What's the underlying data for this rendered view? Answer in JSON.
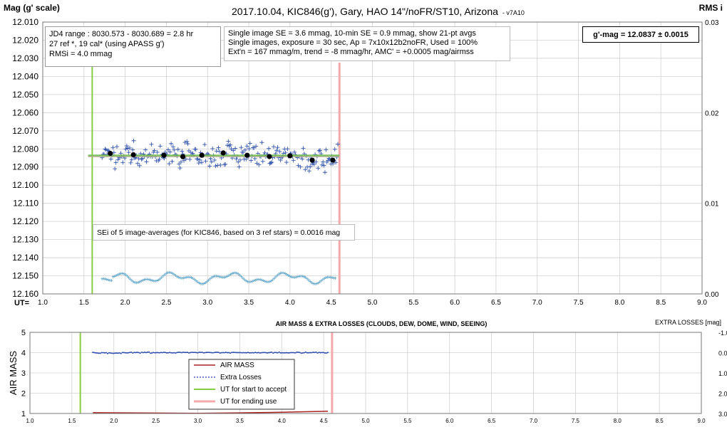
{
  "top_chart": {
    "title": "2017.10.04,  KIC846(g'),  Gary,  HAO  14\"/noFR/ST10,  Arizona",
    "version": "- v7A10",
    "ylabel_left": "Mag (g' scale)",
    "ylabel_right": "RMS i",
    "xlabel": "UT=",
    "y_ticks": [
      "12.010",
      "12.020",
      "12.030",
      "12.040",
      "12.050",
      "12.060",
      "12.070",
      "12.080",
      "12.090",
      "12.100",
      "12.110",
      "12.120",
      "12.130",
      "12.140",
      "12.150",
      "12.160"
    ],
    "x_ticks": [
      "1.0",
      "1.5",
      "2.0",
      "2.5",
      "3.0",
      "3.5",
      "4.0",
      "4.5",
      "5.0",
      "5.5",
      "6.0",
      "6.5",
      "7.0",
      "7.5",
      "8.0",
      "8.5",
      "9.0"
    ],
    "right_ticks": [
      "0.03",
      "0.02",
      "0.01",
      "0.00"
    ],
    "info_left": [
      "JD4 range : 8030.573 - 8030.689 =  2.8  hr",
      "27 ref *, 19 cal* (using APASS g')",
      "RMSi = 4.0 mmag"
    ],
    "info_center": [
      "Single image SE = 3.6 mmag, 10-min SE = 0.9 mmag, show 21-pt avgs",
      "Single images, exposure = 30 sec, Ap = 7x10x12b2noFR, Used = 100%",
      "Ext'n = 167 mmag/m, trend = -8 mmag/hr, AMC' = +0.0005 mag/airmss"
    ],
    "result_box": "g'-mag = 12.0837 ± 0.0015",
    "sei_note": "SEi of 5 image-averages (for KIC846, based on 3 ref stars) = 0.0016 mag"
  },
  "bottom_chart": {
    "title": "AIR MASS & EXTRA LOSSES (CLOUDS, DEW, DOME, WIND, SEEING)",
    "ylabel_left": "AIR MASS",
    "ylabel_right": "EXTRA LOSSES [mag]",
    "y_ticks": [
      "5",
      "4",
      "3",
      "2",
      "1"
    ],
    "right_ticks": [
      "-1.0",
      "0.0",
      "1.0",
      "2.0",
      "3.0"
    ],
    "x_ticks": [
      "1.0",
      "1.5",
      "2.0",
      "2.5",
      "3.0",
      "3.5",
      "4.0",
      "4.5",
      "5.0",
      "5.5",
      "6.0",
      "6.5",
      "7.0",
      "7.5",
      "8.0",
      "8.5",
      "9.0"
    ],
    "legend": [
      "AIR MASS",
      "Extra Losses",
      "UT for start to accept",
      "UT for ending use"
    ]
  },
  "colors": {
    "singles": "#3355aa",
    "avg": "#000000",
    "trend": "#77bb55",
    "start": "#88cc44",
    "end": "#f4aaaa",
    "rms": "#66aacc",
    "airmass": "#aa2222",
    "losses": "#2244aa"
  },
  "chart_data": [
    {
      "type": "scatter",
      "title": "2017.10.04,  KIC846(g'),  Gary,  HAO  14\"/noFR/ST10,  Arizona",
      "xlabel": "UT=",
      "ylabel": "Mag (g' scale)",
      "xlim": [
        1.0,
        9.0
      ],
      "ylim": [
        12.16,
        12.01
      ],
      "y2label": "RMS i",
      "y2lim": [
        0.0,
        0.03
      ],
      "grid": true,
      "ut_start": 1.6,
      "ut_end": 4.6,
      "trend_line": {
        "x": [
          1.55,
          4.6
        ],
        "y": [
          12.0837,
          12.0837
        ]
      },
      "averages": {
        "name": "21-pt avgs",
        "x": [
          1.82,
          2.1,
          2.47,
          2.7,
          2.93,
          3.19,
          3.48,
          3.75,
          4.0,
          4.27,
          4.52
        ],
        "y": [
          12.0825,
          12.0832,
          12.0835,
          12.0843,
          12.0835,
          12.0822,
          12.0835,
          12.0842,
          12.0838,
          12.0862,
          12.0862
        ]
      },
      "singles_ut_range": [
        1.72,
        4.58
      ],
      "rms_ut_range": [
        1.72,
        4.55
      ]
    },
    {
      "type": "line",
      "title": "AIR MASS & EXTRA LOSSES (CLOUDS, DEW, DOME, WIND, SEEING)",
      "xlim": [
        1.0,
        9.0
      ],
      "ylim": [
        1,
        5
      ],
      "ylabel": "AIR MASS",
      "y2label": "EXTRA LOSSES [mag]",
      "y2lim": [
        3.0,
        -1.0
      ],
      "series": [
        {
          "name": "AIR MASS",
          "x": [
            1.75,
            2.5,
            3.0,
            3.5,
            4.0,
            4.55
          ],
          "y": [
            1.04,
            1.02,
            1.01,
            1.03,
            1.06,
            1.11
          ]
        },
        {
          "name": "Extra Losses",
          "x": [
            1.75,
            2.5,
            3.0,
            3.5,
            4.0,
            4.55
          ],
          "y": [
            0.0,
            0.01,
            0.0,
            0.0,
            0.0,
            0.0
          ]
        }
      ],
      "ut_start": 1.6,
      "ut_end": 4.6
    }
  ]
}
